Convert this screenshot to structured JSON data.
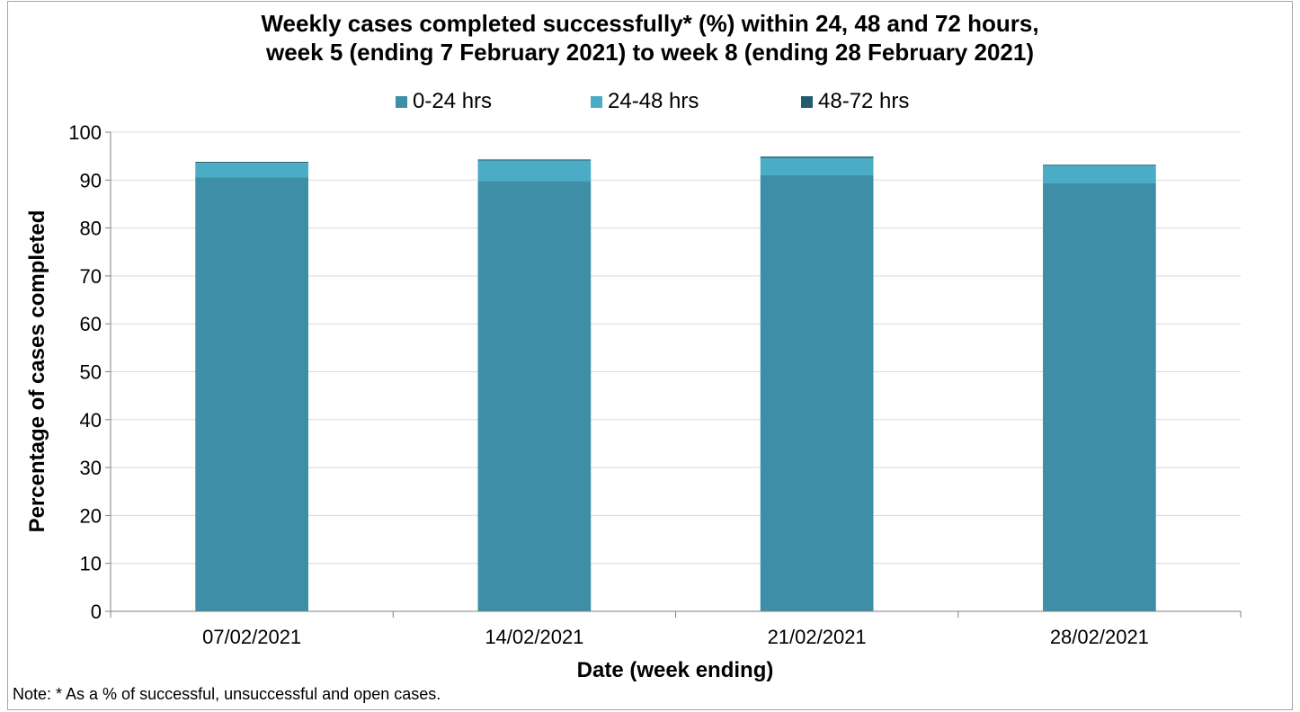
{
  "chart_data": {
    "type": "bar",
    "stacked": true,
    "title_lines": [
      "Weekly cases completed successfully* (%) within 24, 48 and 72 hours,",
      "week 5 (ending 7 February 2021) to week 8 (ending 28 February 2021)"
    ],
    "xlabel": "Date (week ending)",
    "ylabel": "Percentage of cases completed",
    "ylim": [
      0,
      100
    ],
    "yticks": [
      0,
      10,
      20,
      30,
      40,
      50,
      60,
      70,
      80,
      90,
      100
    ],
    "grid": true,
    "legend_position": "top",
    "categories": [
      "07/02/2021",
      "14/02/2021",
      "21/02/2021",
      "28/02/2021"
    ],
    "series": [
      {
        "name": "0-24 hrs",
        "color": "#3d8ea6",
        "values": [
          90.6,
          89.8,
          91.0,
          89.3
        ]
      },
      {
        "name": "24-48 hrs",
        "color": "#4bacc6",
        "values": [
          3.0,
          4.3,
          3.6,
          3.7
        ]
      },
      {
        "name": "48-72 hrs",
        "color": "#215d6e",
        "values": [
          0.2,
          0.2,
          0.3,
          0.2
        ]
      }
    ]
  },
  "note": "Note: * As a % of successful, unsuccessful and open cases."
}
